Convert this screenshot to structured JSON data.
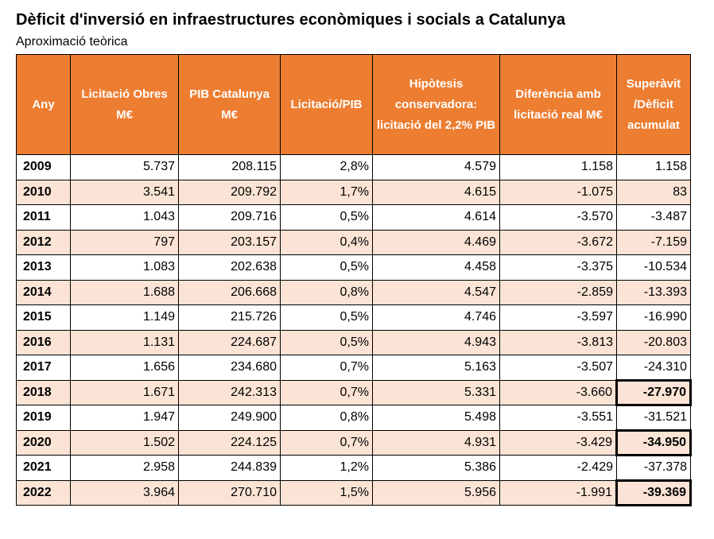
{
  "title": "Dèficit d'inversió en infraestructures econòmiques i socials a Catalunya",
  "subtitle": "Aproximació teòrica",
  "colors": {
    "header_bg": "#ed7d31",
    "header_text": "#ffffff",
    "row_shade": "#fbe4d5"
  },
  "chart_data": {
    "type": "table",
    "title": "Dèficit d'inversió en infraestructures econòmiques i socials a Catalunya",
    "subtitle": "Aproximació teòrica",
    "columns": [
      "Any",
      "Licitació Obres M€",
      "PIB Catalunya M€",
      "Licitació/PIB",
      "Hipòtesis conservadora: licitació del 2,2% PIB",
      "Diferència amb licitació real M€",
      "Superàvit /Dèficit acumulat"
    ],
    "rows": [
      [
        "2009",
        "5.737",
        "208.115",
        "2,8%",
        "4.579",
        "1.158",
        "1.158"
      ],
      [
        "2010",
        "3.541",
        "209.792",
        "1,7%",
        "4.615",
        "-1.075",
        "83"
      ],
      [
        "2011",
        "1.043",
        "209.716",
        "0,5%",
        "4.614",
        "-3.570",
        "-3.487"
      ],
      [
        "2012",
        "797",
        "203.157",
        "0,4%",
        "4.469",
        "-3.672",
        "-7.159"
      ],
      [
        "2013",
        "1.083",
        "202.638",
        "0,5%",
        "4.458",
        "-3.375",
        "-10.534"
      ],
      [
        "2014",
        "1.688",
        "206.668",
        "0,8%",
        "4.547",
        "-2.859",
        "-13.393"
      ],
      [
        "2015",
        "1.149",
        "215.726",
        "0,5%",
        "4.746",
        "-3.597",
        "-16.990"
      ],
      [
        "2016",
        "1.131",
        "224.687",
        "0,5%",
        "4.943",
        "-3.813",
        "-20.803"
      ],
      [
        "2017",
        "1.656",
        "234.680",
        "0,7%",
        "5.163",
        "-3.507",
        "-24.310"
      ],
      [
        "2018",
        "1.671",
        "242.313",
        "0,7%",
        "5.331",
        "-3.660",
        "-27.970"
      ],
      [
        "2019",
        "1.947",
        "249.900",
        "0,8%",
        "5.498",
        "-3.551",
        "-31.521"
      ],
      [
        "2020",
        "1.502",
        "224.125",
        "0,7%",
        "4.931",
        "-3.429",
        "-34.950"
      ],
      [
        "2021",
        "2.958",
        "244.839",
        "1,2%",
        "5.386",
        "-2.429",
        "-37.378"
      ],
      [
        "2022",
        "3.964",
        "270.710",
        "1,5%",
        "5.956",
        "-1.991",
        "-39.369"
      ]
    ],
    "highlighted_years": [
      "2018",
      "2020",
      "2022"
    ]
  }
}
